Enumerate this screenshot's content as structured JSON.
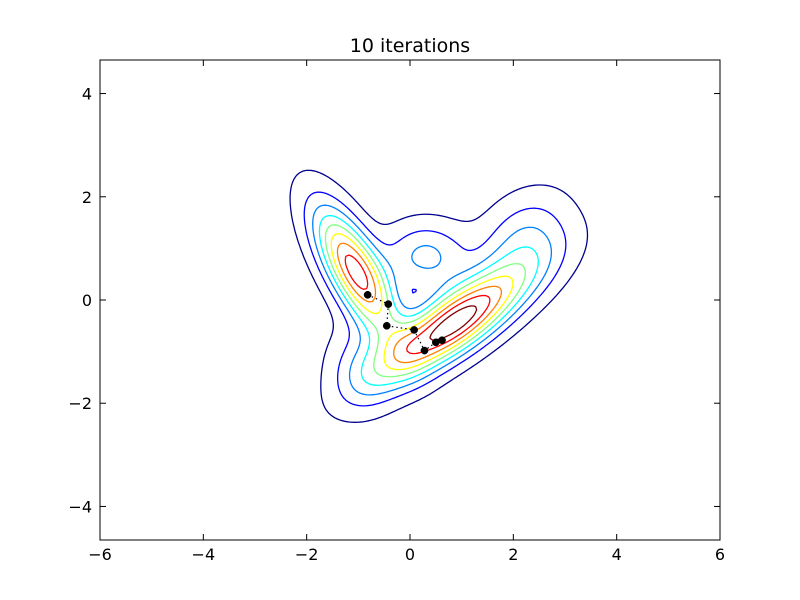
{
  "chart_data": {
    "type": "contour",
    "title": "10 iterations",
    "xlabel": "",
    "ylabel": "",
    "xlim": [
      -6,
      6
    ],
    "ylim": [
      -4.65,
      4.65
    ],
    "xticks": [
      -6,
      -4,
      -2,
      0,
      2,
      4,
      6
    ],
    "yticks": [
      -4,
      -2,
      0,
      2,
      4
    ],
    "xtick_labels": [
      "−6",
      "−4",
      "−2",
      "0",
      "2",
      "4",
      "6"
    ],
    "ytick_labels": [
      "−4",
      "−2",
      "0",
      "2",
      "4"
    ],
    "grid": false,
    "colormap": "jet",
    "contour_colors": [
      "#00008f",
      "#0000ff",
      "#0080ff",
      "#00ffff",
      "#80ff80",
      "#ffff00",
      "#ff8000",
      "#ff0000",
      "#800000"
    ],
    "points": [
      {
        "x": -0.82,
        "y": 0.1
      },
      {
        "x": -0.42,
        "y": -0.08
      },
      {
        "x": -0.45,
        "y": -0.5
      },
      {
        "x": 0.08,
        "y": -0.58
      },
      {
        "x": 0.28,
        "y": -0.98
      },
      {
        "x": 0.5,
        "y": -0.82
      },
      {
        "x": 0.62,
        "y": -0.78
      }
    ],
    "point_color": "#000000",
    "path_style": "dotted"
  }
}
